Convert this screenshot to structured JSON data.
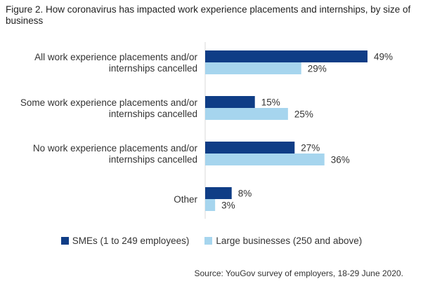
{
  "title": "Figure 2. How coronavirus has impacted work experience placements and internships, by size of business",
  "source": "Source: YouGov survey of employers, 18-29 June 2020.",
  "colors": {
    "sme": "#0f3d86",
    "large": "#a6d5ee"
  },
  "chart_data": {
    "type": "bar",
    "orientation": "horizontal",
    "title": "Figure 2. How coronavirus has impacted work experience placements and internships, by size of business",
    "categories": [
      [
        "All work experience placements and/or",
        "internships cancelled"
      ],
      [
        "Some work experience placements and/or",
        "internships cancelled"
      ],
      [
        "No work experience placements and/or",
        "internships cancelled"
      ],
      [
        "Other"
      ]
    ],
    "series": [
      {
        "name": "SMEs (1 to 249 employees)",
        "values": [
          49,
          15,
          27,
          8
        ]
      },
      {
        "name": "Large businesses (250 and above)",
        "values": [
          29,
          25,
          36,
          3
        ]
      }
    ],
    "value_suffix": "%",
    "xlim": [
      0,
      49
    ],
    "grid": false,
    "legend": "bottom"
  }
}
